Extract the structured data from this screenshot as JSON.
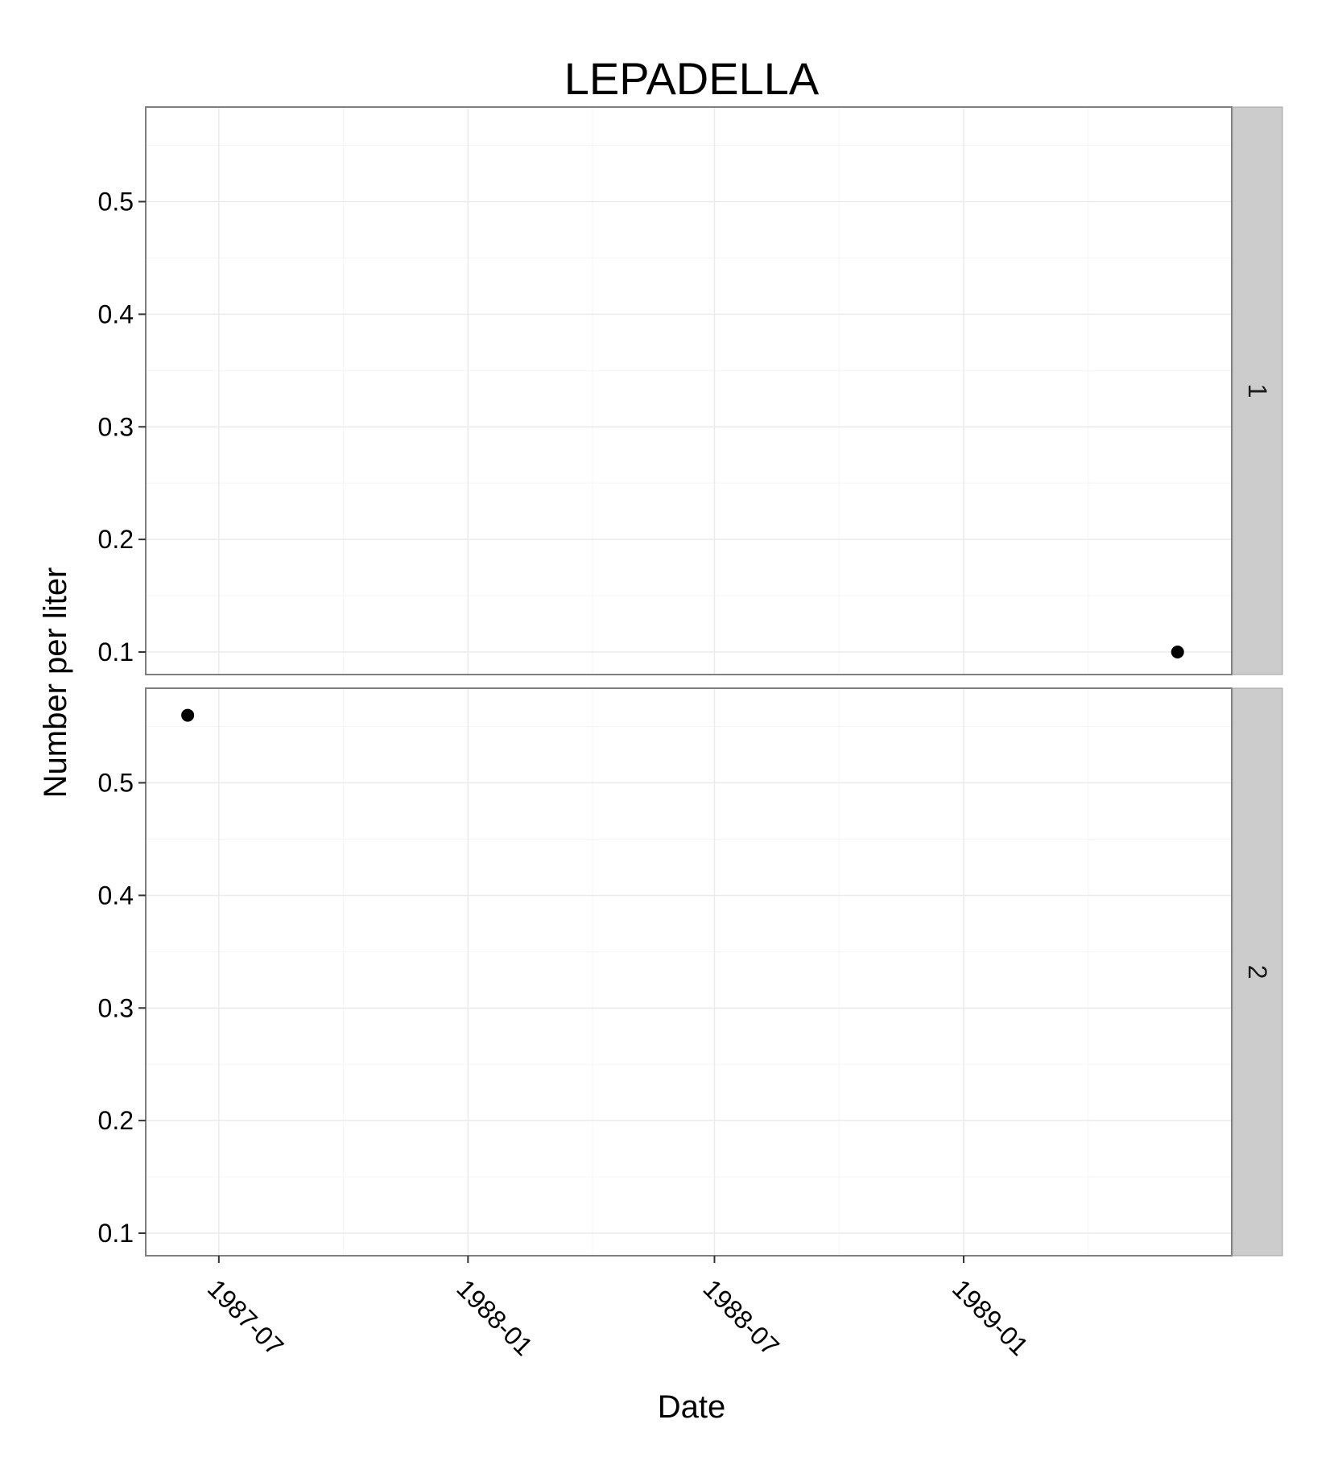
{
  "chart_data": {
    "type": "scatter",
    "title": "LEPADELLA",
    "xlabel": "Date",
    "ylabel": "Number per liter",
    "x_ticks": [
      "1987-07",
      "1988-01",
      "1988-07",
      "1989-01"
    ],
    "y_ticks": [
      "0.1",
      "0.2",
      "0.3",
      "0.4",
      "0.5"
    ],
    "xlim": [
      "1987-05-08",
      "1989-07-18"
    ],
    "ylim": [
      0.08,
      0.584
    ],
    "grid": true,
    "facets": [
      {
        "label": "1",
        "points": [
          {
            "x": "1989-06-08",
            "y": 0.1
          }
        ]
      },
      {
        "label": "2",
        "points": [
          {
            "x": "1987-06-08",
            "y": 0.56
          }
        ]
      }
    ],
    "colors": {
      "point": "#000000",
      "strip": "#cccccc",
      "grid_major": "#ebebeb",
      "grid_minor": "#f5f5f5",
      "panel_border": "#7f7f7f"
    }
  }
}
